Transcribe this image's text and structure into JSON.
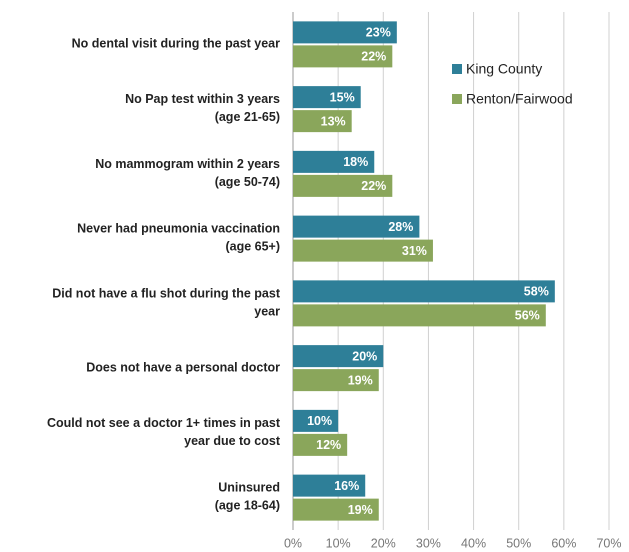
{
  "chart_data": {
    "type": "bar",
    "orientation": "horizontal",
    "categories": [
      "No dental visit during the past year",
      "No Pap test within 3 years\n(age 21-65)",
      "No mammogram within 2 years\n(age 50-74)",
      "Never had pneumonia vaccination\n(age 65+)",
      "Did not have a flu shot during the past\nyear",
      "Does not have a personal doctor",
      "Could not see a doctor 1+ times in past\nyear due to cost",
      "Uninsured\n(age 18-64)"
    ],
    "series": [
      {
        "name": "King County",
        "color": "#2e7f98",
        "values": [
          23,
          15,
          18,
          28,
          58,
          20,
          10,
          16
        ],
        "value_labels": [
          "23%",
          "15%",
          "18%",
          "28%",
          "58%",
          "20%",
          "10%",
          "16%"
        ]
      },
      {
        "name": "Renton/Fairwood",
        "color": "#8aa65b",
        "values": [
          22,
          13,
          22,
          31,
          56,
          19,
          12,
          19
        ],
        "value_labels": [
          "22%",
          "13%",
          "22%",
          "31%",
          "56%",
          "19%",
          "12%",
          "19%"
        ]
      }
    ],
    "xlim": [
      0,
      70
    ],
    "xticks": [
      {
        "value": 0,
        "label": "0%"
      },
      {
        "value": 10,
        "label": "10%"
      },
      {
        "value": 20,
        "label": "20%"
      },
      {
        "value": 30,
        "label": "30%"
      },
      {
        "value": 40,
        "label": "40%"
      },
      {
        "value": 50,
        "label": "50%"
      },
      {
        "value": 60,
        "label": "60%"
      },
      {
        "value": 70,
        "label": "70%"
      }
    ],
    "grid": true,
    "legend": "upper right"
  }
}
